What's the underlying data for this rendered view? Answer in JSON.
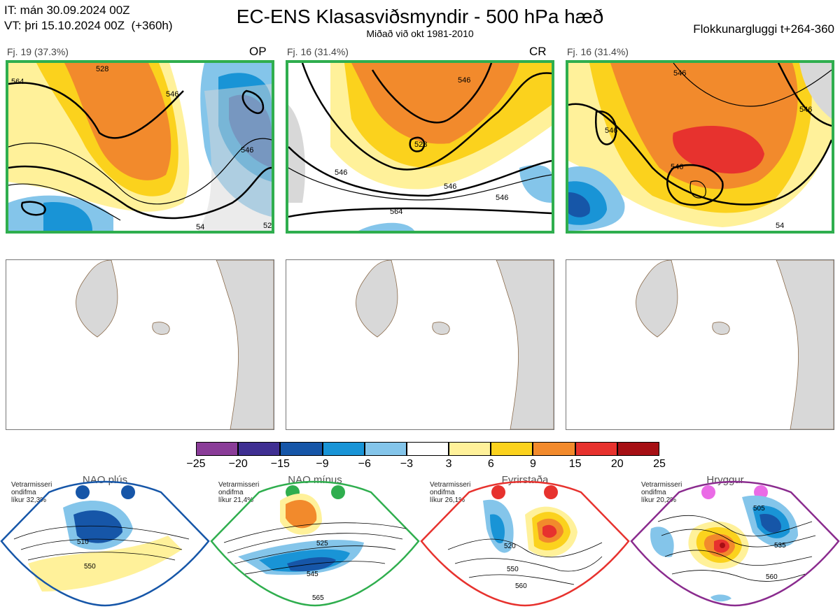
{
  "header": {
    "init_time": "IT: mán 30.09.2024 00Z",
    "valid_time": "VT: þri 15.10.2024 00Z",
    "lead": "(+360h)",
    "title": "EC-ENS Klasasviðsmyndir - 500 hPa hæð",
    "subtitle": "Miðað við okt 1981-2010",
    "window": "Flokkunargluggi t+264-360"
  },
  "panels": [
    {
      "caption": "Fj. 19 (37.3%)",
      "tag": "OP",
      "contours": [
        "564",
        "528",
        "546",
        "546",
        "54",
        "52"
      ]
    },
    {
      "caption": "Fj. 16 (31.4%)",
      "tag": "CR",
      "contours": [
        "546",
        "528",
        "546",
        "546",
        "546",
        "564"
      ]
    },
    {
      "caption": "Fj. 16 (31.4%)",
      "tag": "",
      "contours": [
        "546",
        "546",
        "546",
        "546",
        "54"
      ]
    }
  ],
  "colorbar": {
    "ticks": [
      "−25",
      "−20",
      "−15",
      "−9",
      "−6",
      "−3",
      "3",
      "6",
      "9",
      "15",
      "20",
      "25"
    ],
    "colors": [
      "#8a3c98",
      "#3f2f92",
      "#1656a8",
      "#1994d6",
      "#84c5ea",
      "#ffffff",
      "#fff19a",
      "#fbd21d",
      "#f28a2c",
      "#e7322e",
      "#a60f14"
    ]
  },
  "regimes": [
    {
      "name": "NAO plús",
      "note": [
        "Vetrarmisseri",
        "ondifma",
        "líkur 32,3%"
      ],
      "color": "#1656a8",
      "dot": "#1656a8",
      "labels": [
        "510",
        "550"
      ]
    },
    {
      "name": "NAO mínus",
      "note": [
        "Vetrarmisseri",
        "ondifma",
        "líkur 21,4%"
      ],
      "color": "#2fae4e",
      "dot": "#2fae4e",
      "labels": [
        "525",
        "545",
        "565"
      ]
    },
    {
      "name": "Fyrirstaða",
      "note": [
        "Vetrarmisseri",
        "ondifma",
        "líkur 26,1%"
      ],
      "color": "#e7322e",
      "dot": "#e7322e",
      "labels": [
        "520",
        "550",
        "560"
      ]
    },
    {
      "name": "Hryggur",
      "note": [
        "Vetrarmisseri",
        "ondifma",
        "líkur 20,2%"
      ],
      "color": "#8a2b8e",
      "dot": "#ea6be6",
      "labels": [
        "505",
        "535",
        "560"
      ]
    }
  ]
}
